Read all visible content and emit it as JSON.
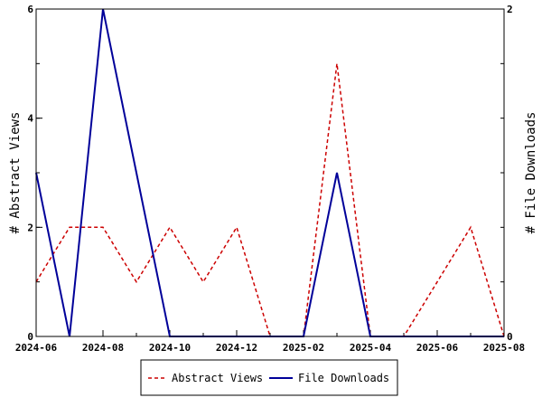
{
  "chart_data": {
    "type": "line",
    "title": "",
    "xlabel": "",
    "x": [
      "2024-06",
      "2024-07",
      "2024-08",
      "2024-09",
      "2024-10",
      "2024-11",
      "2024-12",
      "2025-01",
      "2025-02",
      "2025-03",
      "2025-04",
      "2025-05",
      "2025-06",
      "2025-07",
      "2025-08"
    ],
    "x_tick_labels": [
      "2024-06",
      "2024-08",
      "2024-10",
      "2024-12",
      "2025-02",
      "2025-04",
      "2025-06",
      "2025-08"
    ],
    "y_left": {
      "label": "# Abstract Views",
      "range": [
        0,
        6
      ],
      "ticks": [
        "0",
        "2",
        "4",
        "6"
      ]
    },
    "y_right": {
      "label": "# File Downloads",
      "range": [
        0,
        2
      ],
      "ticks": [
        "0",
        "2"
      ]
    },
    "series": [
      {
        "name": "Abstract Views",
        "axis": "left",
        "color": "#cc0000",
        "dash": "dashed",
        "values": [
          1,
          2,
          2,
          1,
          2,
          1,
          2,
          0,
          0,
          5,
          0,
          0,
          1,
          2,
          0
        ]
      },
      {
        "name": "File Downloads",
        "axis": "right",
        "color": "#000099",
        "dash": "solid",
        "values": [
          1,
          0,
          2,
          1,
          0,
          0,
          0,
          0,
          0,
          1,
          0,
          0,
          0,
          0,
          0
        ]
      }
    ],
    "grid": false,
    "legend_position": "bottom-center"
  }
}
